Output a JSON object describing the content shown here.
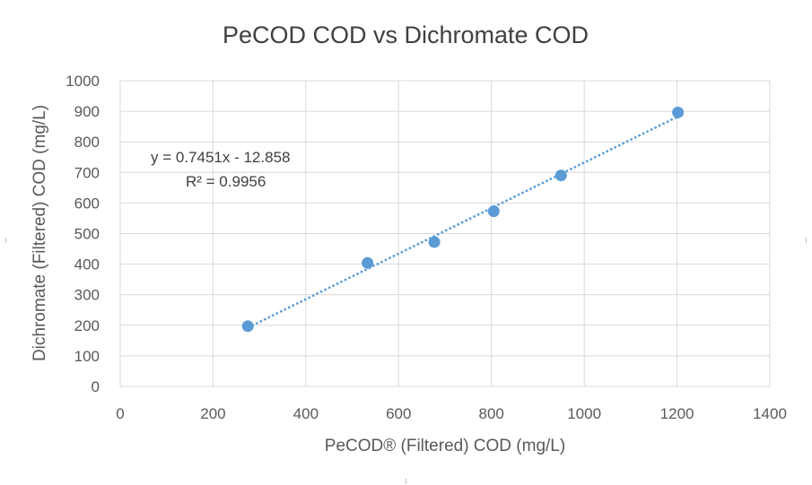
{
  "chart_data": {
    "type": "scatter",
    "title": "PeCOD COD vs Dichromate COD",
    "xlabel": "PeCOD® (Filtered) COD (mg/L)",
    "ylabel": "Dichromate (Filtered) COD (mg/L)",
    "xlim": [
      0,
      1400
    ],
    "ylim": [
      0,
      1000
    ],
    "xticks": [
      0,
      200,
      400,
      600,
      800,
      1000,
      1200,
      1400
    ],
    "yticks": [
      0,
      100,
      200,
      300,
      400,
      500,
      600,
      700,
      800,
      900,
      1000
    ],
    "grid": true,
    "legend": "none",
    "series": [
      {
        "x": [
          275,
          533,
          677,
          805,
          950,
          1202
        ],
        "y": [
          197,
          404,
          472,
          573,
          690,
          896
        ],
        "color": "#5B9BD5"
      }
    ],
    "trendline": {
      "type": "linear",
      "slope": 0.7451,
      "intercept": -12.858,
      "x_range": [
        275,
        1202
      ],
      "style": "dotted",
      "color": "#5B9BD5",
      "equation_label": "y = 0.7451x - 12.858",
      "r2_label": "R² = 0.9956"
    }
  }
}
